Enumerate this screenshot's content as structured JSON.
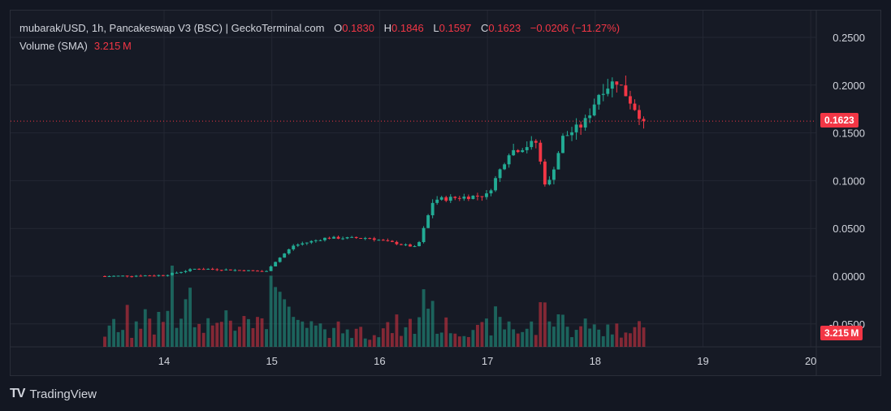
{
  "legend": {
    "title": "mubarak/USD, 1h, Pancakeswap V3 (BSC) | GeckoTerminal.com",
    "o_label": "O",
    "o_value": "0.1830",
    "h_label": "H",
    "h_value": "0.1846",
    "l_label": "L",
    "l_value": "0.1597",
    "c_label": "C",
    "c_value": "0.1623",
    "change": "−0.0206 (−11.27%)",
    "volume_label": "Volume (SMA)",
    "volume_value": "3.215 M"
  },
  "last_price_tag": "0.1623",
  "last_volume_tag": "3.215 M",
  "brand": {
    "logo": "TV",
    "name": "TradingView"
  },
  "colors": {
    "up": "#22ab94",
    "down": "#f23645",
    "background": "#161a25",
    "grid": "#232733",
    "text": "#d1d4dc"
  },
  "chart_data": {
    "type": "candlestick",
    "title": "mubarak/USD, 1h, Pancakeswap V3 (BSC) | GeckoTerminal.com",
    "x_ticks": [
      "14",
      "15",
      "16",
      "17",
      "18",
      "19",
      "20"
    ],
    "y_ticks": [
      "0.2500",
      "0.2000",
      "0.1500",
      "0.1000",
      "0.0500",
      "0.0000",
      "-0.0500"
    ],
    "ylim": [
      -0.05,
      0.25
    ],
    "x_range_days": [
      13.6,
      20.0
    ],
    "last_close": 0.1623,
    "ohlc_anchor_points": [
      {
        "day": 13.45,
        "close": 0.0
      },
      {
        "day": 14.0,
        "close": 0.001
      },
      {
        "day": 14.3,
        "close": 0.008
      },
      {
        "day": 14.95,
        "close": 0.005
      },
      {
        "day": 15.0,
        "close": 0.012
      },
      {
        "day": 15.2,
        "close": 0.032
      },
      {
        "day": 15.5,
        "close": 0.04
      },
      {
        "day": 15.9,
        "close": 0.04
      },
      {
        "day": 16.35,
        "close": 0.03
      },
      {
        "day": 16.5,
        "close": 0.08
      },
      {
        "day": 17.0,
        "close": 0.085
      },
      {
        "day": 17.2,
        "close": 0.13
      },
      {
        "day": 17.45,
        "close": 0.14
      },
      {
        "day": 17.55,
        "close": 0.09
      },
      {
        "day": 17.7,
        "close": 0.145
      },
      {
        "day": 17.9,
        "close": 0.16
      },
      {
        "day": 18.05,
        "close": 0.195
      },
      {
        "day": 18.2,
        "close": 0.205
      },
      {
        "day": 18.45,
        "close": 0.1623
      }
    ],
    "volume": {
      "label": "Volume (SMA)",
      "last": "3.215 M"
    }
  }
}
